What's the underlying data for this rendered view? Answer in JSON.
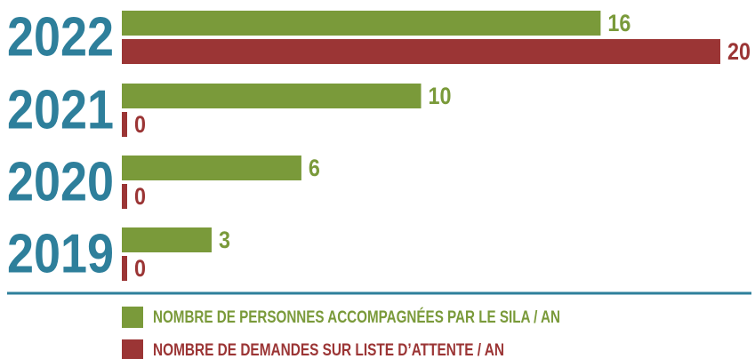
{
  "chart_data": {
    "type": "bar",
    "orientation": "horizontal",
    "categories": [
      "2022",
      "2021",
      "2020",
      "2019"
    ],
    "series": [
      {
        "name": "NOMBRE DE PERSONNES ACCOMPAGNÉES PAR LE SILA / AN",
        "color": "#7a9a3a",
        "values": [
          16,
          10,
          6,
          3
        ]
      },
      {
        "name": "NOMBRE DE DEMANDES SUR LISTE D’ATTENTE / AN",
        "color": "#9b3535",
        "values": [
          20,
          0,
          0,
          0
        ]
      }
    ],
    "xlim": [
      0,
      20
    ],
    "category_color": "#2e7f9b"
  }
}
